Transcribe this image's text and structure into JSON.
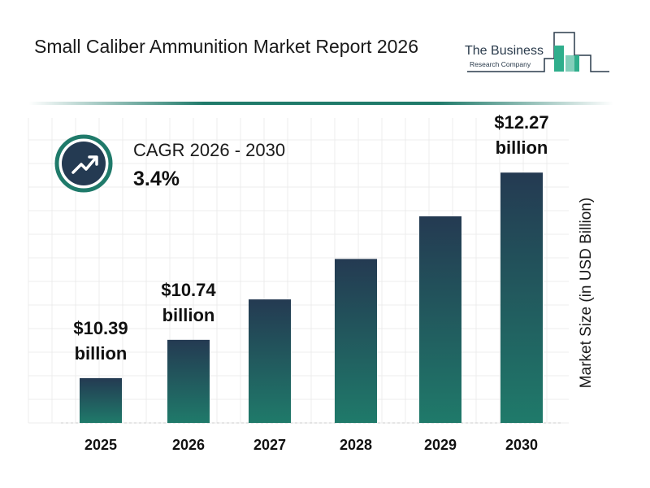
{
  "header": {
    "title": "Small Caliber Ammunition Market Report 2026"
  },
  "logo": {
    "line1": "The Business",
    "line2": "Research Company"
  },
  "cagr": {
    "label": "CAGR 2026 - 2030",
    "value": "3.4%",
    "icon": "trending-up-icon"
  },
  "colors": {
    "bar_top": "#243a52",
    "bar_bottom": "#1f7a6a",
    "accent": "#1f7a6a",
    "badge": "#243a52"
  },
  "chart_data": {
    "type": "bar",
    "title": "Small Caliber Ammunition Market Report 2026",
    "categories": [
      "2025",
      "2026",
      "2027",
      "2028",
      "2029",
      "2030"
    ],
    "values": [
      10.39,
      10.74,
      11.11,
      11.48,
      11.87,
      12.27
    ],
    "data_labels": [
      [
        "$10.39",
        "billion"
      ],
      [
        "$10.74",
        "billion"
      ],
      null,
      null,
      null,
      [
        "$12.27",
        "billion"
      ]
    ],
    "xlabel": "",
    "ylabel": "Market Size (in USD Billion)",
    "ylim": [
      9.98,
      12.77
    ],
    "grid": true,
    "legend": "none"
  }
}
